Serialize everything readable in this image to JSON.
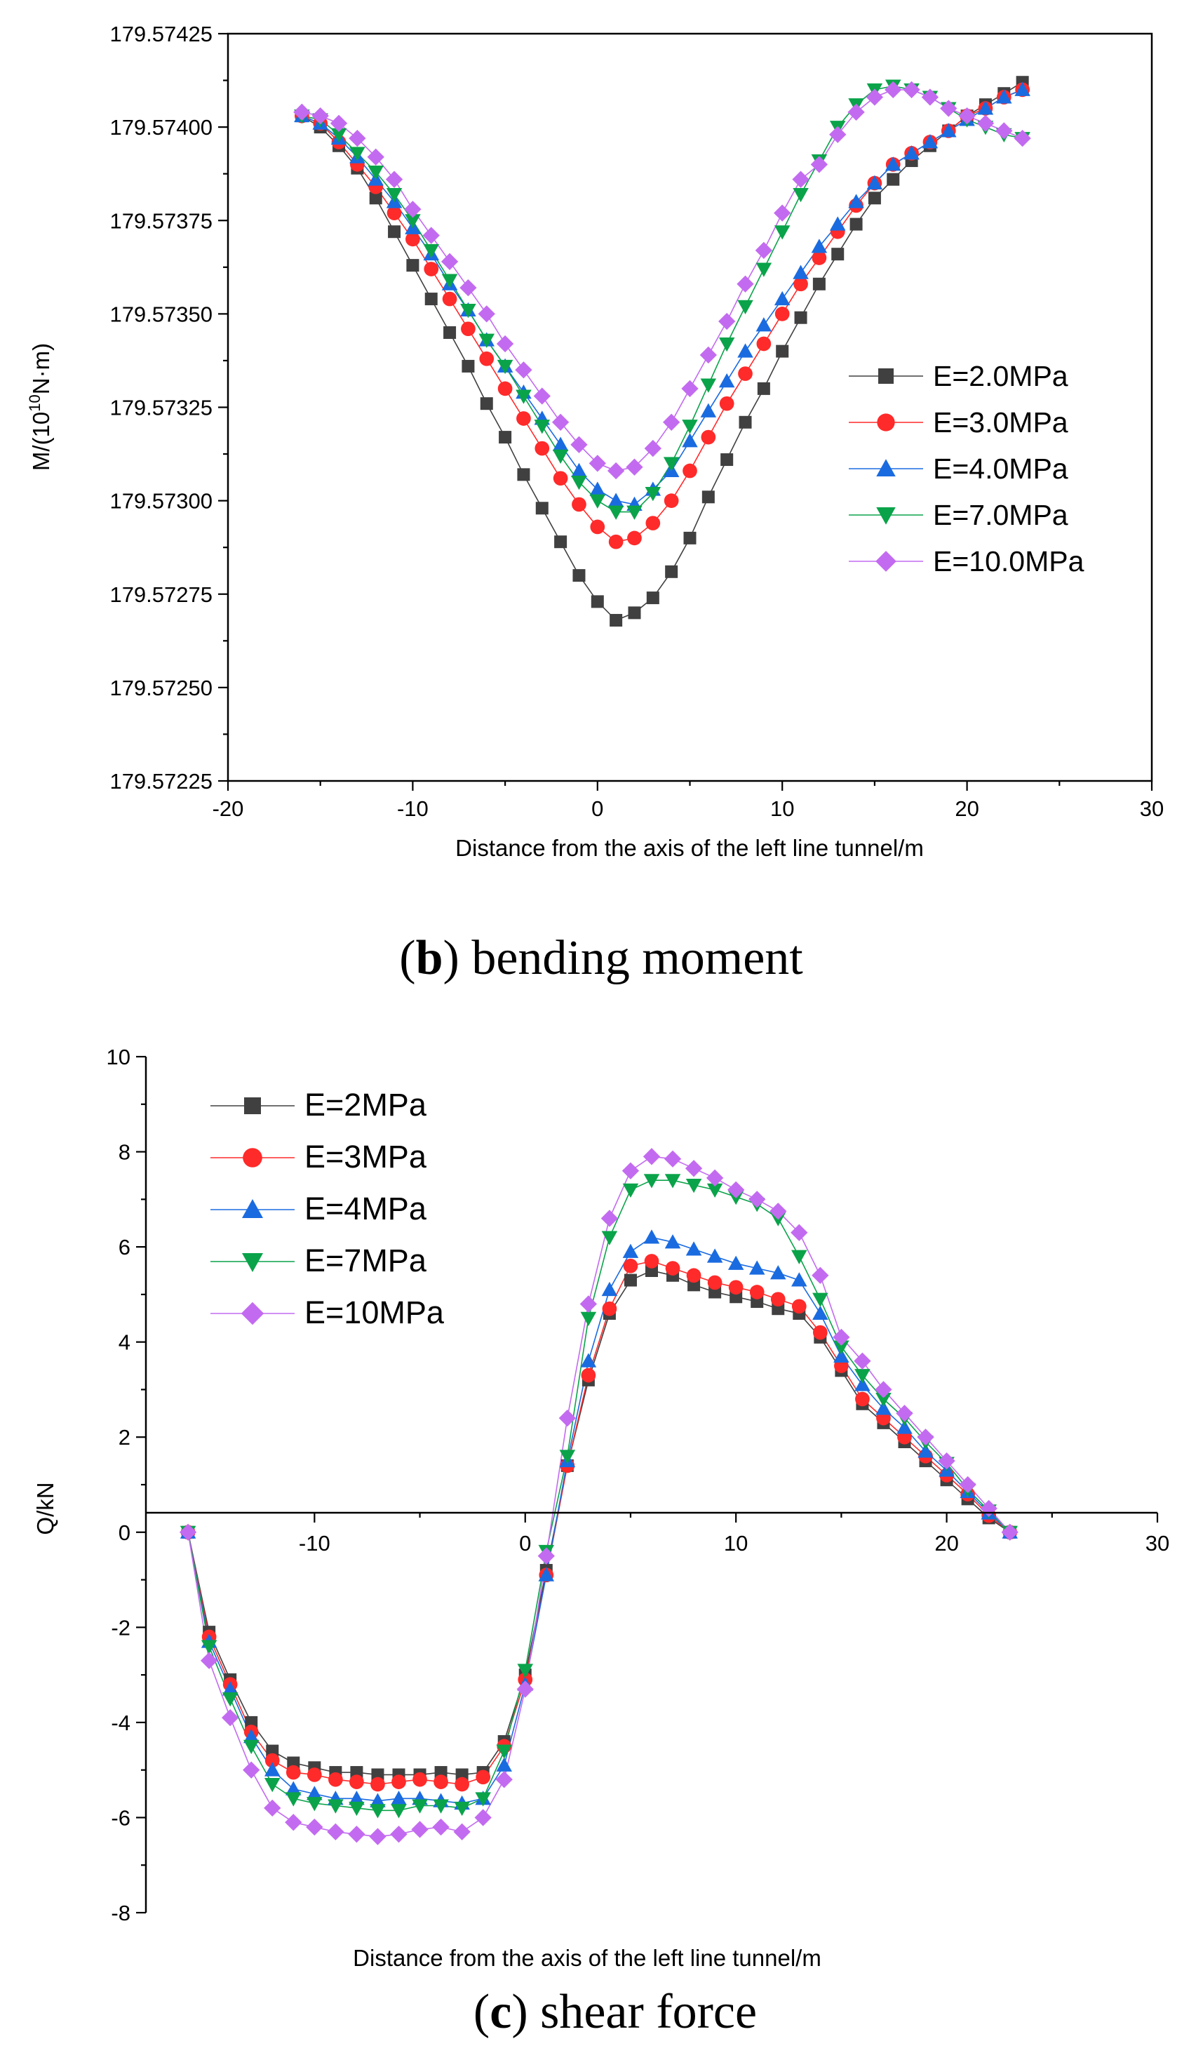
{
  "chart_data": [
    {
      "type": "line",
      "caption_letter": "b",
      "caption_text": "bending moment",
      "xlabel": "Distance from the axis of the left line tunnel/m",
      "ylabel_main": "M/(10",
      "ylabel_sup": "10",
      "ylabel_tail": "N·m)",
      "xlim": [
        -20,
        30
      ],
      "ylim": [
        179.57225,
        179.57425
      ],
      "xticks": [
        -20,
        -10,
        0,
        10,
        20,
        30
      ],
      "xtick_labels": [
        "-20",
        "-10",
        "0",
        "10",
        "20",
        "30"
      ],
      "yticks": [
        179.57225,
        179.5725,
        179.57275,
        179.573,
        179.57325,
        179.5735,
        179.57375,
        179.574,
        179.57425
      ],
      "ytick_labels": [
        "179.57225",
        "179.57250",
        "179.57275",
        "179.57300",
        "179.57325",
        "179.57350",
        "179.57375",
        "179.57400",
        "179.57425"
      ],
      "x": [
        -16,
        -15,
        -14,
        -13,
        -12,
        -11,
        -10,
        -9,
        -8,
        -7,
        -6,
        -5,
        -4,
        -3,
        -2,
        -1,
        0,
        1,
        2,
        3,
        4,
        5,
        6,
        7,
        8,
        9,
        10,
        11,
        12,
        13,
        14,
        15,
        16,
        17,
        18,
        19,
        20,
        21,
        22,
        23
      ],
      "series": [
        {
          "name": "E=2.0MPa",
          "color": "#404040",
          "marker": "square",
          "values": [
            179.57403,
            179.574,
            179.57395,
            179.57389,
            179.57381,
            179.57372,
            179.57363,
            179.57354,
            179.57345,
            179.57336,
            179.57326,
            179.57317,
            179.57307,
            179.57298,
            179.57289,
            179.5728,
            179.57273,
            179.57268,
            179.5727,
            179.57274,
            179.57281,
            179.5729,
            179.57301,
            179.57311,
            179.57321,
            179.5733,
            179.5734,
            179.57349,
            179.57358,
            179.57366,
            179.57374,
            179.57381,
            179.57386,
            179.57391,
            179.57395,
            179.57399,
            179.57403,
            179.57406,
            179.57409,
            179.57412
          ]
        },
        {
          "name": "E=3.0MPa",
          "color": "#ff2a2a",
          "marker": "circle",
          "values": [
            179.57403,
            179.57401,
            179.57396,
            179.5739,
            179.57384,
            179.57377,
            179.5737,
            179.57362,
            179.57354,
            179.57346,
            179.57338,
            179.5733,
            179.57322,
            179.57314,
            179.57306,
            179.57299,
            179.57293,
            179.57289,
            179.5729,
            179.57294,
            179.573,
            179.57308,
            179.57317,
            179.57326,
            179.57334,
            179.57342,
            179.5735,
            179.57358,
            179.57365,
            179.57372,
            179.57379,
            179.57385,
            179.5739,
            179.57393,
            179.57396,
            179.57399,
            179.57403,
            179.57405,
            179.57408,
            179.5741
          ]
        },
        {
          "name": "E=4.0MPa",
          "color": "#1a6be0",
          "marker": "triangle-up",
          "values": [
            179.57403,
            179.57401,
            179.57397,
            179.57392,
            179.57386,
            179.5738,
            179.57373,
            179.57366,
            179.57358,
            179.57351,
            179.57343,
            179.57336,
            179.57329,
            179.57322,
            179.57315,
            179.57308,
            179.57303,
            179.573,
            179.57299,
            179.57303,
            179.57308,
            179.57316,
            179.57324,
            179.57332,
            179.5734,
            179.57347,
            179.57354,
            179.57361,
            179.57368,
            179.57374,
            179.5738,
            179.57385,
            179.5739,
            179.57393,
            179.57396,
            179.57399,
            179.57402,
            179.57405,
            179.57408,
            179.5741
          ]
        },
        {
          "name": "E=7.0MPa",
          "color": "#0aa34a",
          "marker": "triangle-down",
          "values": [
            179.57403,
            179.57402,
            179.57398,
            179.57393,
            179.57388,
            179.57382,
            179.57375,
            179.57367,
            179.57359,
            179.57351,
            179.57343,
            179.57336,
            179.57328,
            179.5732,
            179.57312,
            179.57305,
            179.573,
            179.57297,
            179.57297,
            179.57302,
            179.5731,
            179.5732,
            179.57331,
            179.57342,
            179.57352,
            179.57362,
            179.57372,
            179.57382,
            179.57391,
            179.574,
            179.57406,
            179.5741,
            179.57411,
            179.5741,
            179.57408,
            179.57405,
            179.57402,
            179.574,
            179.57398,
            179.57397
          ]
        },
        {
          "name": "E=10.0MPa",
          "color": "#c36bf0",
          "marker": "diamond",
          "values": [
            179.57404,
            179.57403,
            179.57401,
            179.57397,
            179.57392,
            179.57386,
            179.57378,
            179.57371,
            179.57364,
            179.57357,
            179.5735,
            179.57342,
            179.57335,
            179.57328,
            179.57321,
            179.57315,
            179.5731,
            179.57308,
            179.57309,
            179.57314,
            179.57321,
            179.5733,
            179.57339,
            179.57348,
            179.57358,
            179.57367,
            179.57377,
            179.57386,
            179.5739,
            179.57398,
            179.57404,
            179.57408,
            179.5741,
            179.5741,
            179.57408,
            179.57405,
            179.57403,
            179.57401,
            179.57399,
            179.57397
          ]
        }
      ]
    },
    {
      "type": "line",
      "caption_letter": "c",
      "caption_text": "shear force",
      "xlabel": "Distance from the axis of the left line tunnel/m",
      "ylabel": "Q/kN",
      "xlim": [
        -18,
        30
      ],
      "ylim": [
        -8,
        10
      ],
      "xticks": [
        -10,
        0,
        10,
        20,
        30
      ],
      "xtick_labels": [
        "-10",
        "0",
        "10",
        "20",
        "30"
      ],
      "yticks": [
        -8,
        -6,
        -4,
        -2,
        0,
        2,
        4,
        6,
        8,
        10
      ],
      "ytick_labels": [
        "-8",
        "-6",
        "-4",
        "-2",
        "0",
        "2",
        "4",
        "6",
        "8",
        "10"
      ],
      "x": [
        -16,
        -15,
        -14,
        -13,
        -12,
        -11,
        -10,
        -9,
        -8,
        -7,
        -6,
        -5,
        -4,
        -3,
        -2,
        -1,
        0,
        1,
        2,
        3,
        4,
        5,
        6,
        7,
        8,
        9,
        10,
        11,
        12,
        13,
        14,
        15,
        16,
        17,
        18,
        19,
        20,
        21,
        22,
        23
      ],
      "series": [
        {
          "name": "E=2MPa",
          "color": "#404040",
          "marker": "square",
          "values": [
            0,
            -2.1,
            -3.1,
            -4.0,
            -4.6,
            -4.85,
            -4.95,
            -5.05,
            -5.05,
            -5.1,
            -5.1,
            -5.1,
            -5.05,
            -5.1,
            -5.05,
            -4.4,
            -3.0,
            -0.8,
            1.4,
            3.2,
            4.6,
            5.3,
            5.5,
            5.4,
            5.2,
            5.05,
            4.95,
            4.85,
            4.7,
            4.6,
            4.1,
            3.4,
            2.7,
            2.3,
            1.9,
            1.5,
            1.1,
            0.7,
            0.3,
            0
          ]
        },
        {
          "name": "E=3MPa",
          "color": "#ff2a2a",
          "marker": "circle",
          "values": [
            0,
            -2.2,
            -3.2,
            -4.2,
            -4.8,
            -5.05,
            -5.1,
            -5.2,
            -5.25,
            -5.3,
            -5.25,
            -5.2,
            -5.25,
            -5.3,
            -5.15,
            -4.5,
            -3.1,
            -0.9,
            1.4,
            3.3,
            4.7,
            5.6,
            5.7,
            5.55,
            5.4,
            5.25,
            5.15,
            5.05,
            4.9,
            4.75,
            4.2,
            3.5,
            2.8,
            2.4,
            2.0,
            1.6,
            1.2,
            0.8,
            0.35,
            0
          ]
        },
        {
          "name": "E=4MPa",
          "color": "#1a6be0",
          "marker": "triangle-up",
          "values": [
            0,
            -2.3,
            -3.3,
            -4.3,
            -5.0,
            -5.4,
            -5.5,
            -5.6,
            -5.6,
            -5.65,
            -5.6,
            -5.6,
            -5.65,
            -5.7,
            -5.6,
            -4.9,
            -3.2,
            -0.9,
            1.5,
            3.6,
            5.1,
            5.9,
            6.2,
            6.1,
            5.95,
            5.8,
            5.65,
            5.55,
            5.45,
            5.3,
            4.6,
            3.7,
            3.1,
            2.6,
            2.2,
            1.7,
            1.3,
            0.85,
            0.4,
            0
          ]
        },
        {
          "name": "E=7MPa",
          "color": "#0aa34a",
          "marker": "triangle-down",
          "values": [
            0,
            -2.4,
            -3.5,
            -4.5,
            -5.3,
            -5.6,
            -5.7,
            -5.75,
            -5.8,
            -5.85,
            -5.85,
            -5.75,
            -5.75,
            -5.8,
            -5.6,
            -4.6,
            -2.9,
            -0.4,
            1.6,
            4.5,
            6.2,
            7.2,
            7.4,
            7.4,
            7.3,
            7.2,
            7.05,
            6.9,
            6.6,
            5.8,
            4.9,
            3.9,
            3.3,
            2.8,
            2.4,
            1.9,
            1.45,
            0.9,
            0.45,
            0
          ]
        },
        {
          "name": "E=10MPa",
          "color": "#c36bf0",
          "marker": "diamond",
          "values": [
            0,
            -2.7,
            -3.9,
            -5.0,
            -5.8,
            -6.1,
            -6.2,
            -6.3,
            -6.35,
            -6.4,
            -6.35,
            -6.25,
            -6.2,
            -6.3,
            -6.0,
            -5.2,
            -3.3,
            -0.5,
            2.4,
            4.8,
            6.6,
            7.6,
            7.9,
            7.85,
            7.65,
            7.45,
            7.2,
            7.0,
            6.75,
            6.3,
            5.4,
            4.1,
            3.6,
            3.0,
            2.5,
            2.0,
            1.5,
            1.0,
            0.5,
            0
          ]
        }
      ]
    }
  ]
}
